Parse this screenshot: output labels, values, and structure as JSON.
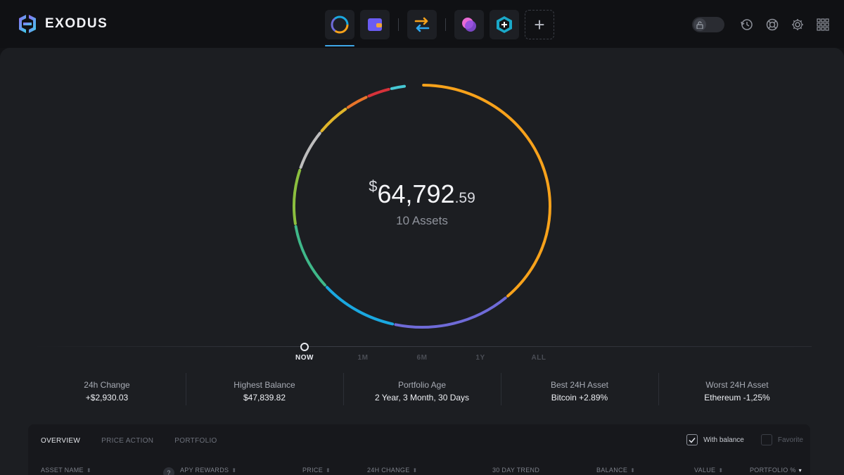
{
  "app": {
    "name": "EXODUS"
  },
  "nav": {
    "items": [
      {
        "name": "portfolio",
        "active": true
      },
      {
        "name": "wallet",
        "active": false
      },
      {
        "name": "exchange",
        "active": false
      },
      {
        "name": "apps-chat",
        "active": false
      },
      {
        "name": "add-app",
        "active": false
      }
    ]
  },
  "portfolio": {
    "currency_symbol": "$",
    "balance_main": "64,792",
    "balance_decimal": ".59",
    "assets_label": "10 Assets",
    "ring_segments": [
      {
        "color": "#f7a21b",
        "share": 0.385
      },
      {
        "color": "#6f6bd8",
        "share": 0.15
      },
      {
        "color": "#1aa8e0",
        "share": 0.1
      },
      {
        "color": "#3fb88a",
        "share": 0.09
      },
      {
        "color": "#8bbf3f",
        "share": 0.075
      },
      {
        "color": "#bdbdbd",
        "share": 0.055
      },
      {
        "color": "#e0b52a",
        "share": 0.045
      },
      {
        "color": "#e8742a",
        "share": 0.03
      },
      {
        "color": "#d6323a",
        "share": 0.03
      },
      {
        "color": "#46c8d4",
        "share": 0.02
      }
    ]
  },
  "timeline": {
    "ranges": [
      {
        "label": "NOW",
        "active": true
      },
      {
        "label": "1M",
        "active": false
      },
      {
        "label": "6M",
        "active": false
      },
      {
        "label": "1Y",
        "active": false
      },
      {
        "label": "ALL",
        "active": false
      }
    ]
  },
  "stats": [
    {
      "label": "24h Change",
      "value": "+$2,930.03"
    },
    {
      "label": "Highest Balance",
      "value": "$47,839.82"
    },
    {
      "label": "Portfolio Age",
      "value": "2 Year, 3 Month, 30 Days"
    },
    {
      "label": "Best 24H Asset",
      "value": "Bitcoin +2.89%"
    },
    {
      "label": "Worst 24H Asset",
      "value": "Ethereum -1,25%"
    }
  ],
  "table": {
    "tabs": [
      {
        "label": "OVERVIEW",
        "active": true
      },
      {
        "label": "PRICE ACTION",
        "active": false
      },
      {
        "label": "PORTFOLIO",
        "active": false
      }
    ],
    "filters": [
      {
        "label": "With balance",
        "checked": true
      },
      {
        "label": "Favorite",
        "checked": false
      }
    ],
    "help_badge": "?",
    "columns": [
      "ASSET NAME",
      "APY REWARDS",
      "PRICE",
      "24H CHANGE",
      "30 DAY TREND",
      "BALANCE",
      "VALUE",
      "PORTFOLIO %"
    ]
  }
}
